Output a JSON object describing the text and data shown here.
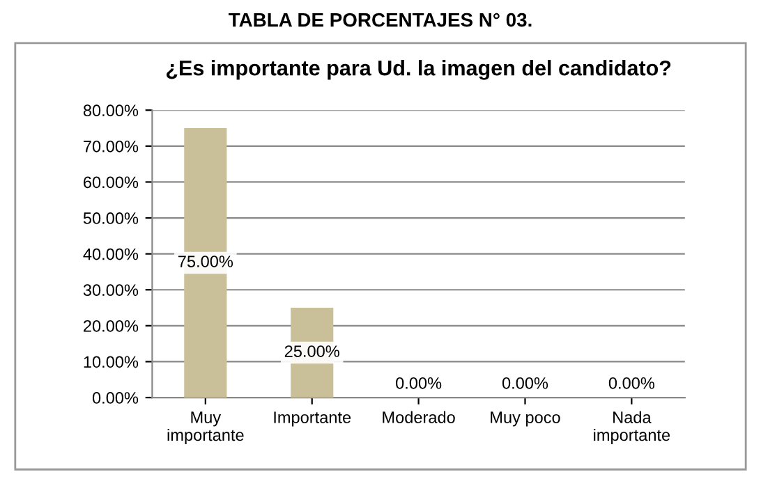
{
  "chart_data": {
    "type": "bar",
    "title": "¿Es importante para Ud. la imagen del candidato?",
    "annotations": [
      "TABLA DE PORCENTAJES N° 03."
    ],
    "categories": [
      "Muy\nimportante",
      "Importante",
      "Moderado",
      "Muy poco",
      "Nada\nimportante"
    ],
    "values": [
      75,
      25,
      0,
      0,
      0
    ],
    "value_labels": [
      "75.00%",
      "25.00%",
      "0.00%",
      "0.00%",
      "0.00%"
    ],
    "color": "#c9c09a",
    "ylim": [
      0,
      80
    ],
    "yticks": [
      {
        "value": 0,
        "label": "0.00%"
      },
      {
        "value": 10,
        "label": "10.00%"
      },
      {
        "value": 20,
        "label": "20.00%"
      },
      {
        "value": 30,
        "label": "30.00%"
      },
      {
        "value": 40,
        "label": "40.00%"
      },
      {
        "value": 50,
        "label": "50.00%"
      },
      {
        "value": 60,
        "label": "60.00%"
      },
      {
        "value": 70,
        "label": "70.00%"
      },
      {
        "value": 80,
        "label": "80.00%"
      }
    ],
    "grid": "y",
    "legend": false
  }
}
